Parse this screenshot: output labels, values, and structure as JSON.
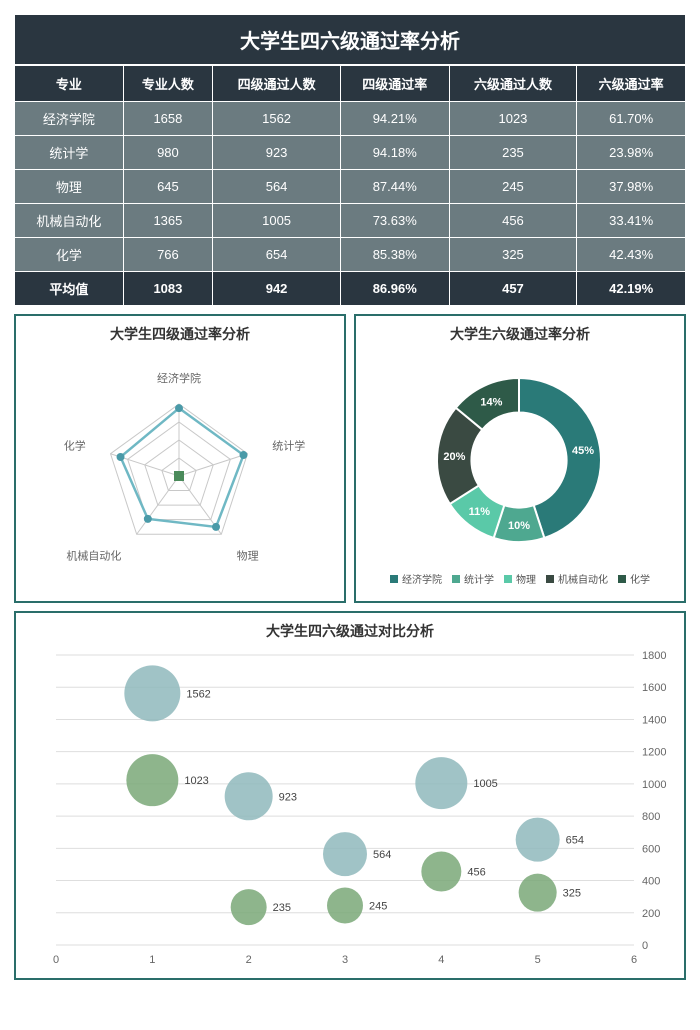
{
  "title": "大学生四六级通过率分析",
  "table": {
    "columns": [
      "专业",
      "专业人数",
      "四级通过人数",
      "四级通过率",
      "六级通过人数",
      "六级通过率"
    ],
    "rows": [
      [
        "经济学院",
        "1658",
        "1562",
        "94.21%",
        "1023",
        "61.70%"
      ],
      [
        "统计学",
        "980",
        "923",
        "94.18%",
        "235",
        "23.98%"
      ],
      [
        "物理",
        "645",
        "564",
        "87.44%",
        "245",
        "37.98%"
      ],
      [
        "机械自动化",
        "1365",
        "1005",
        "73.63%",
        "456",
        "33.41%"
      ],
      [
        "化学",
        "766",
        "654",
        "85.38%",
        "325",
        "42.43%"
      ]
    ],
    "avg_label": "平均值",
    "avg": [
      "1083",
      "942",
      "86.96%",
      "457",
      "42.19%"
    ],
    "header_bg": "#2a3640",
    "row_bg": "#6b7b80",
    "text_color": "#ffffff"
  },
  "radar": {
    "title": "大学生四级通过率分析",
    "labels": [
      "经济学院",
      "统计学",
      "物理",
      "机械自动化",
      "化学"
    ],
    "values": [
      94.21,
      94.18,
      87.44,
      73.63,
      85.38
    ],
    "max": 100,
    "rings": 4,
    "line_color": "#6fb8c4",
    "line_width": 2.5,
    "marker_color": "#4a9aa8",
    "grid_color": "#c8c8c8",
    "center_color": "#4a8a5a",
    "label_fontsize": 11,
    "label_color": "#666666"
  },
  "donut": {
    "title": "大学生六级通过率分析",
    "slices": [
      {
        "label": "经济学院",
        "value": 45,
        "color": "#2a7a78",
        "text": "45%"
      },
      {
        "label": "统计学",
        "value": 10,
        "color": "#4ea890",
        "text": "10%"
      },
      {
        "label": "物理",
        "value": 11,
        "color": "#5ac9a8",
        "text": "11%"
      },
      {
        "label": "机械自动化",
        "value": 20,
        "color": "#3a4a42",
        "text": "20%"
      },
      {
        "label": "化学",
        "value": 14,
        "color": "#2e5a48",
        "text": "14%"
      }
    ],
    "inner_ratio": 0.58,
    "label_fontsize": 11,
    "label_color": "#ffffff"
  },
  "bubble": {
    "title": "大学生四六级通过对比分析",
    "series": [
      {
        "color": "#8fb8bc",
        "opacity": 0.85,
        "points": [
          {
            "x": 1,
            "y": 1562,
            "r": 28,
            "label": "1562"
          },
          {
            "x": 2,
            "y": 923,
            "r": 24,
            "label": "923"
          },
          {
            "x": 3,
            "y": 564,
            "r": 22,
            "label": "564"
          },
          {
            "x": 4,
            "y": 1005,
            "r": 26,
            "label": "1005"
          },
          {
            "x": 5,
            "y": 654,
            "r": 22,
            "label": "654"
          }
        ]
      },
      {
        "color": "#7aa878",
        "opacity": 0.85,
        "points": [
          {
            "x": 1,
            "y": 1023,
            "r": 26,
            "label": "1023"
          },
          {
            "x": 2,
            "y": 235,
            "r": 18,
            "label": "235"
          },
          {
            "x": 3,
            "y": 245,
            "r": 18,
            "label": "245"
          },
          {
            "x": 4,
            "y": 456,
            "r": 20,
            "label": "456"
          },
          {
            "x": 5,
            "y": 325,
            "r": 19,
            "label": "325"
          }
        ]
      }
    ],
    "xlim": [
      0,
      6
    ],
    "xtick_step": 1,
    "ylim": [
      0,
      1800
    ],
    "ytick_step": 200,
    "grid_color": "#dedede",
    "axis_fontsize": 11,
    "axis_color": "#666666",
    "label_fontsize": 11
  }
}
